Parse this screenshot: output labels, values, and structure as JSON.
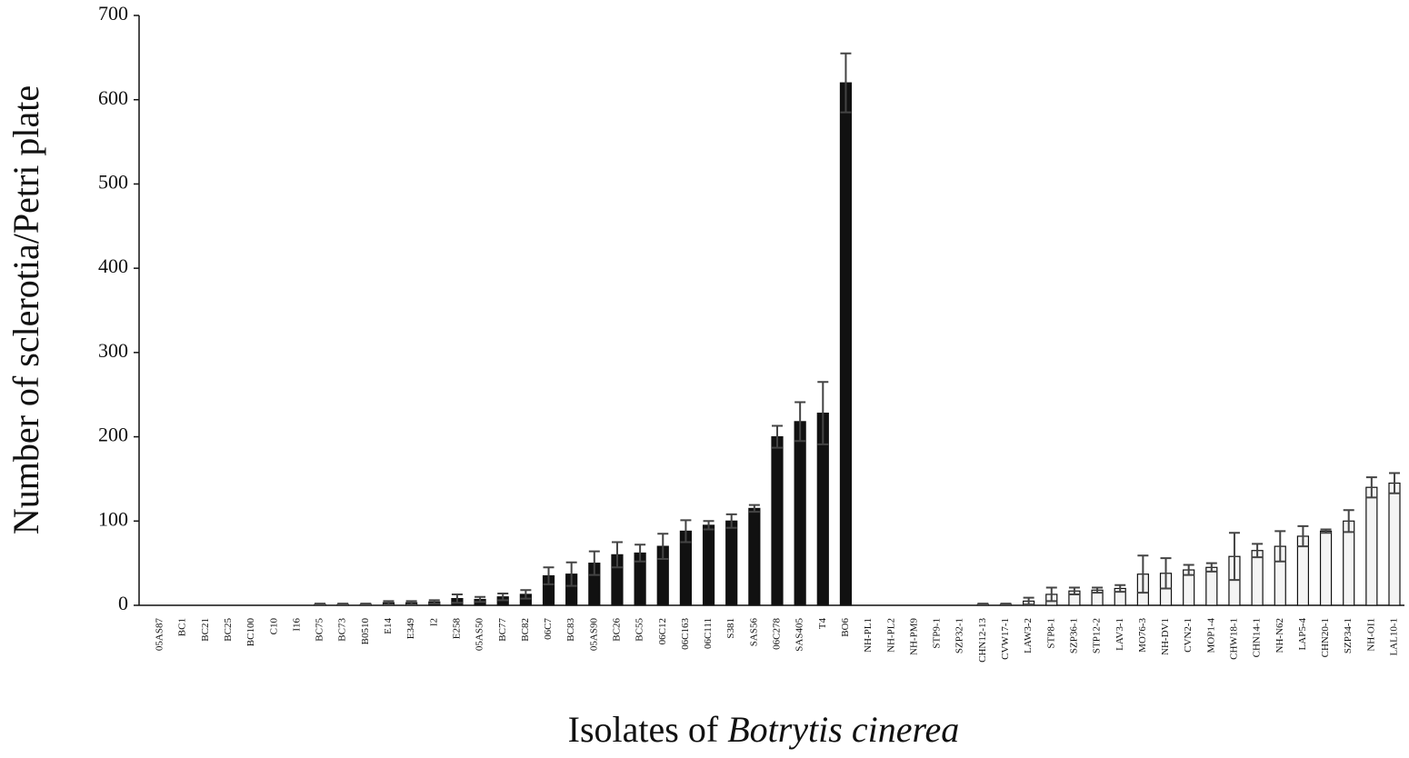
{
  "chart_data": {
    "type": "bar",
    "xlabel": {
      "text": "Isolates of",
      "italic": "Botrytis cinerea"
    },
    "ylabel": "Number of sclerotia/Petri plate",
    "categories": [
      "05AS87",
      "BC1",
      "BC21",
      "BC25",
      "BC100",
      "C10",
      "I16",
      "BC75",
      "BC73",
      "B0510",
      "E14",
      "E349",
      "I2",
      "E258",
      "05AS50",
      "BC77",
      "BC82",
      "06C7",
      "BC83",
      "05AS90",
      "BC26",
      "BC55",
      "06C12",
      "06C163",
      "06C111",
      "S381",
      "SAS56",
      "06C278",
      "SAS405",
      "T4",
      "BO6",
      "NH-PL1",
      "NH-PL2",
      "NH-PM9",
      "STP9-1",
      "SZP32-1",
      "CHN12-13",
      "CVW17-1",
      "LAW3-2",
      "STP8-1",
      "SZP36-1",
      "STP12-2",
      "LAV3-1",
      "MO76-3",
      "NH-DV1",
      "CVN2-1",
      "MOP1-4",
      "CHW18-1",
      "CHN14-1",
      "NH-N62",
      "LAP5-4",
      "CHN20-1",
      "SZP34-1",
      "NH-OI1",
      "LAL10-1"
    ],
    "values": [
      0,
      0,
      0,
      0,
      0,
      0,
      0,
      1,
      1,
      1,
      3,
      3,
      4,
      8,
      7,
      10,
      13,
      35,
      37,
      50,
      60,
      62,
      70,
      88,
      95,
      100,
      115,
      200,
      218,
      228,
      620,
      0,
      0,
      0,
      0,
      0,
      1,
      1,
      5,
      13,
      17,
      18,
      20,
      37,
      38,
      42,
      45,
      58,
      65,
      70,
      82,
      88,
      100,
      140,
      145
    ],
    "errors": [
      0,
      0,
      0,
      0,
      0,
      0,
      0,
      1,
      1,
      1,
      2,
      2,
      2,
      5,
      3,
      4,
      5,
      10,
      14,
      14,
      15,
      10,
      15,
      13,
      5,
      8,
      4,
      13,
      23,
      37,
      35,
      0,
      0,
      0,
      0,
      0,
      1,
      1,
      4,
      8,
      4,
      3,
      4,
      22,
      18,
      6,
      5,
      28,
      8,
      18,
      12,
      2,
      13,
      12,
      12
    ],
    "colors": [
      "#111111",
      "#111111",
      "#111111",
      "#111111",
      "#111111",
      "#111111",
      "#111111",
      "#111111",
      "#111111",
      "#111111",
      "#111111",
      "#111111",
      "#111111",
      "#111111",
      "#111111",
      "#111111",
      "#111111",
      "#111111",
      "#111111",
      "#111111",
      "#111111",
      "#111111",
      "#111111",
      "#111111",
      "#111111",
      "#111111",
      "#111111",
      "#111111",
      "#111111",
      "#111111",
      "#111111",
      "#f4f4f4",
      "#f4f4f4",
      "#f4f4f4",
      "#f4f4f4",
      "#f4f4f4",
      "#f4f4f4",
      "#f4f4f4",
      "#f4f4f4",
      "#f4f4f4",
      "#f4f4f4",
      "#f4f4f4",
      "#f4f4f4",
      "#f4f4f4",
      "#f4f4f4",
      "#f4f4f4",
      "#f4f4f4",
      "#f4f4f4",
      "#f4f4f4",
      "#f4f4f4",
      "#f4f4f4",
      "#f4f4f4",
      "#f4f4f4",
      "#f4f4f4",
      "#f4f4f4"
    ],
    "ylim": [
      0,
      700
    ],
    "yticks": [
      0,
      100,
      200,
      300,
      400,
      500,
      600,
      700
    ]
  }
}
